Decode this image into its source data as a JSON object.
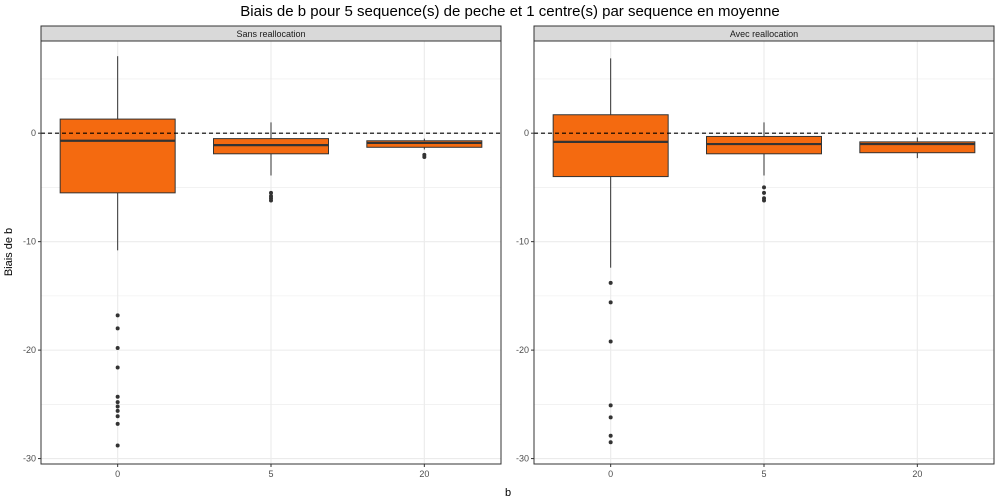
{
  "title": "Biais de b pour 5 sequence(s) de peche et 1 centre(s) par sequence en moyenne",
  "xlabel": "b",
  "ylabel": "Biais de b",
  "colors": {
    "box_fill": "#F46A10",
    "box_stroke": "#333333",
    "strip_bg": "#D9D9D9",
    "grid": "#EBEBEB",
    "reference_line": "#000000"
  },
  "chart_data": {
    "type": "boxplot",
    "categories": [
      "0",
      "5",
      "20"
    ],
    "y_ticks": [
      0,
      -10,
      -20,
      -30
    ],
    "y_tick_labels": [
      "0",
      "-10",
      "-20",
      "-30"
    ],
    "ylim": [
      -30.5,
      8.5
    ],
    "reference_line": {
      "y": 0,
      "style": "dashed"
    },
    "grid": true,
    "facets": [
      {
        "strip_label": "Sans reallocation",
        "boxes": [
          {
            "category": "0",
            "whisker_low": -10.8,
            "q1": -5.5,
            "median": -0.7,
            "q3": 1.3,
            "whisker_high": 7.1,
            "outliers": [
              -16.8,
              -18.0,
              -19.8,
              -21.6,
              -24.3,
              -24.8,
              -25.2,
              -25.6,
              -26.1,
              -26.8,
              -28.8
            ]
          },
          {
            "category": "5",
            "whisker_low": -3.9,
            "q1": -1.9,
            "median": -1.1,
            "q3": -0.5,
            "whisker_high": 1.0,
            "outliers": [
              -5.5,
              -5.8,
              -6.0,
              -6.2
            ]
          },
          {
            "category": "20",
            "whisker_low": -1.5,
            "q1": -1.3,
            "median": -0.9,
            "q3": -0.7,
            "whisker_high": -0.5,
            "outliers": [
              -2.0,
              -2.2
            ]
          }
        ]
      },
      {
        "strip_label": "Avec reallocation",
        "boxes": [
          {
            "category": "0",
            "whisker_low": -12.4,
            "q1": -4.0,
            "median": -0.8,
            "q3": 1.7,
            "whisker_high": 6.9,
            "outliers": [
              -13.8,
              -15.6,
              -19.2,
              -25.1,
              -26.2,
              -27.9,
              -28.5
            ]
          },
          {
            "category": "5",
            "whisker_low": -3.9,
            "q1": -1.9,
            "median": -1.0,
            "q3": -0.3,
            "whisker_high": 1.0,
            "outliers": [
              -5.0,
              -5.5,
              -6.0,
              -6.2
            ]
          },
          {
            "category": "20",
            "whisker_low": -2.3,
            "q1": -1.8,
            "median": -1.0,
            "q3": -0.8,
            "whisker_high": -0.4,
            "outliers": []
          }
        ]
      }
    ]
  }
}
